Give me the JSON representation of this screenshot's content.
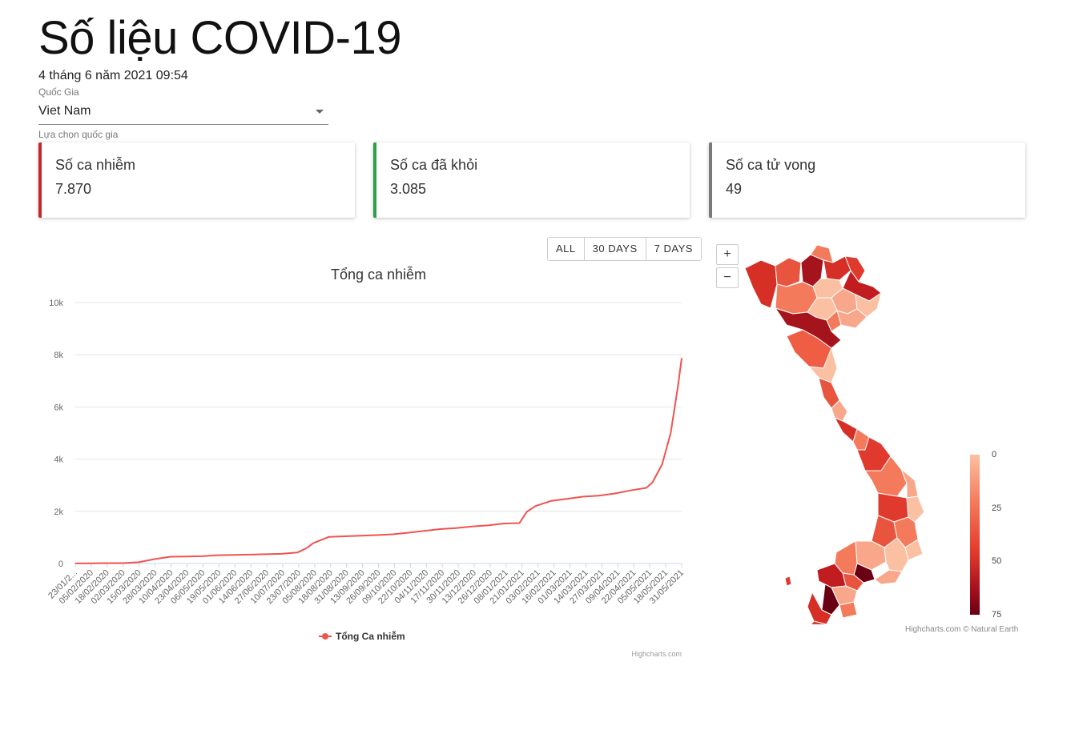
{
  "page": {
    "title": "Số liệu COVID-19",
    "datetime": "4 tháng 6 năm 2021 09:54"
  },
  "country_select": {
    "label": "Quốc Gia",
    "value": "Viet Nam",
    "hint": "Lựa chọn quốc gia"
  },
  "cards": {
    "infected": {
      "title": "Số ca nhiễm",
      "value": "7.870",
      "color": "#c62828"
    },
    "recovered": {
      "title": "Số ca đã khỏi",
      "value": "3.085",
      "color": "#2e9e48"
    },
    "deaths": {
      "title": "Số ca tử vong",
      "value": "49",
      "color": "#7a7a7a"
    }
  },
  "range_buttons": {
    "all": "ALL",
    "days30": "30 DAYS",
    "days7": "7 DAYS"
  },
  "map": {
    "zoom_in": "+",
    "zoom_out": "−",
    "legend_ticks": [
      "0",
      "25",
      "50",
      "75"
    ],
    "credits": "Highcharts.com © Natural Earth"
  },
  "chart_data": {
    "type": "line",
    "title": "Tổng ca nhiễm",
    "series_name": "Tổng Ca nhiễm",
    "line_color": "#ef5350",
    "credits": "Highcharts.com",
    "ylim": [
      0,
      10000
    ],
    "y_ticks": [
      "0",
      "2k",
      "4k",
      "6k",
      "8k",
      "10k"
    ],
    "x_tick_labels": [
      "23/01/2...",
      "05/02/2020",
      "18/02/2020",
      "02/03/2020",
      "15/03/2020",
      "28/03/2020",
      "10/04/2020",
      "23/04/2020",
      "06/05/2020",
      "19/05/2020",
      "01/06/2020",
      "14/06/2020",
      "27/06/2020",
      "10/07/2020",
      "23/07/2020",
      "05/08/2020",
      "18/08/2020",
      "31/08/2020",
      "13/09/2020",
      "26/09/2020",
      "09/10/2020",
      "22/10/2020",
      "04/11/2020",
      "17/11/2020",
      "30/11/2020",
      "13/12/2020",
      "26/12/2020",
      "08/01/2021",
      "21/01/2021",
      "03/02/2021",
      "16/02/2021",
      "01/03/2021",
      "14/03/2021",
      "27/03/2021",
      "09/04/2021",
      "22/04/2021",
      "05/05/2021",
      "18/05/2021",
      "31/05/2021"
    ],
    "x": [
      "23/01/2020",
      "05/02/2020",
      "18/02/2020",
      "02/03/2020",
      "15/03/2020",
      "28/03/2020",
      "10/04/2020",
      "23/04/2020",
      "06/05/2020",
      "19/05/2020",
      "01/06/2020",
      "14/06/2020",
      "27/06/2020",
      "10/07/2020",
      "23/07/2020",
      "31/07/2020",
      "05/08/2020",
      "18/08/2020",
      "31/08/2020",
      "13/09/2020",
      "26/09/2020",
      "09/10/2020",
      "22/10/2020",
      "04/11/2020",
      "17/11/2020",
      "30/11/2020",
      "13/12/2020",
      "26/12/2020",
      "08/01/2021",
      "21/01/2021",
      "27/01/2021",
      "03/02/2021",
      "16/02/2021",
      "01/03/2021",
      "14/03/2021",
      "27/03/2021",
      "09/04/2021",
      "22/04/2021",
      "05/05/2021",
      "10/05/2021",
      "18/05/2021",
      "25/05/2021",
      "31/05/2021",
      "03/06/2021"
    ],
    "values": [
      2,
      10,
      16,
      16,
      50,
      170,
      260,
      270,
      280,
      320,
      328,
      340,
      355,
      370,
      420,
      600,
      780,
      1020,
      1044,
      1064,
      1090,
      1120,
      1180,
      1250,
      1320,
      1360,
      1420,
      1460,
      1530,
      1550,
      1980,
      2200,
      2400,
      2480,
      2560,
      2600,
      2680,
      2800,
      2900,
      3100,
      3800,
      5000,
      6800,
      7870
    ]
  }
}
